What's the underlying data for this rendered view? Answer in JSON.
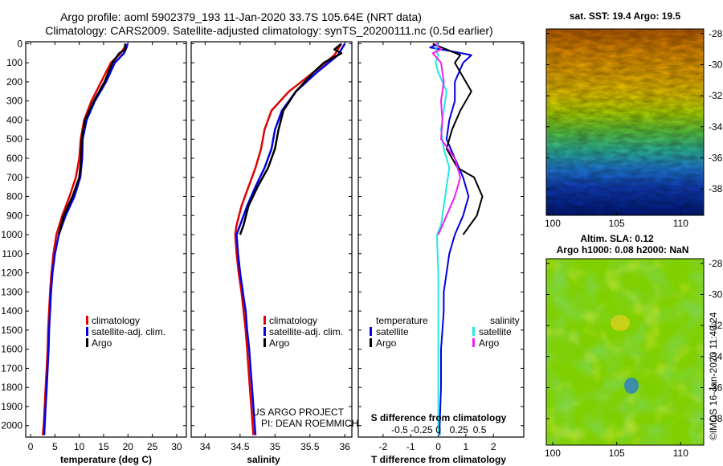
{
  "title_line1": "Argo profile: aoml 5902379_193 11-Jan-2020 33.7S 105.64E (NRT data)",
  "title_line2": "Climatology: CARS2009. Satellite-adjusted climatology: synTS_20200111.nc (0.5d earlier)",
  "watermark": "©IMOS 16-Jan-2020 11:40:24",
  "credit_line1": "US ARGO PROJECT",
  "credit_line2": "PI: DEAN ROEMMICH",
  "colors": {
    "climatology": "#e00000",
    "satellite": "#0000e0",
    "argo": "#000000",
    "sat_salinity": "#22e8e8",
    "argo_salinity": "#f020f0"
  },
  "chart_data": [
    {
      "type": "line",
      "name": "temperature-profile",
      "xlabel": "temperature (deg C)",
      "ylabel": "depth",
      "xlim": [
        -1,
        32
      ],
      "ylim": [
        2060,
        -10
      ],
      "xticks": [
        "0",
        "5",
        "10",
        "15",
        "20",
        "25",
        "30"
      ],
      "xtick_values": [
        0,
        5,
        10,
        15,
        20,
        25,
        30
      ],
      "yticks": [
        "0",
        "100",
        "200",
        "300",
        "400",
        "500",
        "600",
        "700",
        "800",
        "900",
        "1000",
        "1100",
        "1200",
        "1300",
        "1400",
        "1500",
        "1600",
        "1700",
        "1800",
        "1900",
        "2000"
      ],
      "ytick_values": [
        0,
        100,
        200,
        300,
        400,
        500,
        600,
        700,
        800,
        900,
        1000,
        1100,
        1200,
        1300,
        1400,
        1500,
        1600,
        1700,
        1800,
        1900,
        2000
      ],
      "legend": [
        "climatology",
        "satellite-adj. clim.",
        "Argo"
      ],
      "series": [
        {
          "name": "climatology",
          "color": "#e00000",
          "points": [
            [
              19.5,
              0
            ],
            [
              19.3,
              20
            ],
            [
              18.5,
              50
            ],
            [
              16.5,
              100
            ],
            [
              14.5,
              200
            ],
            [
              12.5,
              300
            ],
            [
              11,
              400
            ],
            [
              10.3,
              500
            ],
            [
              10,
              600
            ],
            [
              9.3,
              700
            ],
            [
              8,
              800
            ],
            [
              6.5,
              900
            ],
            [
              5.3,
              1000
            ],
            [
              4.7,
              1100
            ],
            [
              4.3,
              1200
            ],
            [
              4,
              1300
            ],
            [
              3.8,
              1400
            ],
            [
              3.6,
              1500
            ],
            [
              3.5,
              1600
            ],
            [
              3.3,
              1700
            ],
            [
              3.1,
              1800
            ],
            [
              2.9,
              1900
            ],
            [
              2.7,
              2000
            ],
            [
              2.5,
              2050
            ]
          ]
        },
        {
          "name": "satellite-adj. clim.",
          "color": "#0000e0",
          "points": [
            [
              19.9,
              0
            ],
            [
              19.7,
              20
            ],
            [
              19.2,
              50
            ],
            [
              17.3,
              100
            ],
            [
              15.5,
              200
            ],
            [
              13.2,
              300
            ],
            [
              11.5,
              400
            ],
            [
              10.7,
              500
            ],
            [
              10.6,
              600
            ],
            [
              10.2,
              700
            ],
            [
              9,
              800
            ],
            [
              7.2,
              900
            ],
            [
              5.8,
              1000
            ],
            [
              5,
              1100
            ],
            [
              4.5,
              1200
            ],
            [
              4.2,
              1300
            ],
            [
              4,
              1400
            ],
            [
              3.8,
              1500
            ],
            [
              3.7,
              1600
            ],
            [
              3.5,
              1700
            ],
            [
              3.3,
              1800
            ],
            [
              3.1,
              1900
            ],
            [
              2.9,
              2000
            ],
            [
              2.8,
              2050
            ]
          ]
        },
        {
          "name": "Argo",
          "color": "#000000",
          "points": [
            [
              19.4,
              0
            ],
            [
              19.5,
              30
            ],
            [
              18.2,
              50
            ],
            [
              16.8,
              100
            ],
            [
              15.2,
              200
            ],
            [
              13,
              300
            ],
            [
              11.2,
              400
            ],
            [
              10.5,
              500
            ],
            [
              10.4,
              600
            ],
            [
              10,
              700
            ],
            [
              8.6,
              800
            ],
            [
              6.8,
              900
            ],
            [
              5.8,
              1000
            ]
          ]
        }
      ]
    },
    {
      "type": "line",
      "name": "salinity-profile",
      "xlabel": "salinity",
      "xlim": [
        33.8,
        36.1
      ],
      "ylim": [
        2060,
        -10
      ],
      "xticks": [
        "34",
        "34.5",
        "35",
        "35.5",
        "36"
      ],
      "xtick_values": [
        34,
        34.5,
        35,
        35.5,
        36
      ],
      "legend": [
        "climatology",
        "satellite-adj. clim.",
        "Argo"
      ],
      "series": [
        {
          "name": "climatology",
          "color": "#e00000",
          "points": [
            [
              35.95,
              0
            ],
            [
              35.9,
              30
            ],
            [
              35.85,
              60
            ],
            [
              35.55,
              150
            ],
            [
              35.2,
              250
            ],
            [
              34.95,
              350
            ],
            [
              34.85,
              450
            ],
            [
              34.8,
              550
            ],
            [
              34.72,
              650
            ],
            [
              34.62,
              750
            ],
            [
              34.52,
              850
            ],
            [
              34.45,
              950
            ],
            [
              34.43,
              1000
            ],
            [
              34.45,
              1100
            ],
            [
              34.48,
              1200
            ],
            [
              34.52,
              1300
            ],
            [
              34.55,
              1400
            ],
            [
              34.58,
              1500
            ],
            [
              34.6,
              1600
            ],
            [
              34.62,
              1700
            ],
            [
              34.64,
              1800
            ],
            [
              34.66,
              1900
            ],
            [
              34.68,
              2000
            ],
            [
              34.69,
              2050
            ]
          ]
        },
        {
          "name": "satellite-adj. clim.",
          "color": "#0000e0",
          "points": [
            [
              36.0,
              0
            ],
            [
              35.95,
              30
            ],
            [
              35.9,
              60
            ],
            [
              35.6,
              150
            ],
            [
              35.3,
              250
            ],
            [
              35.1,
              350
            ],
            [
              35.0,
              450
            ],
            [
              34.95,
              550
            ],
            [
              34.85,
              650
            ],
            [
              34.72,
              750
            ],
            [
              34.6,
              850
            ],
            [
              34.5,
              950
            ],
            [
              34.45,
              1000
            ],
            [
              34.47,
              1100
            ],
            [
              34.5,
              1200
            ],
            [
              34.54,
              1300
            ],
            [
              34.58,
              1400
            ],
            [
              34.6,
              1500
            ],
            [
              34.63,
              1600
            ],
            [
              34.65,
              1700
            ],
            [
              34.67,
              1800
            ],
            [
              34.69,
              1900
            ],
            [
              34.71,
              2000
            ],
            [
              34.72,
              2050
            ]
          ]
        },
        {
          "name": "Argo",
          "color": "#000000",
          "points": [
            [
              35.95,
              0
            ],
            [
              35.85,
              30
            ],
            [
              35.95,
              50
            ],
            [
              35.7,
              100
            ],
            [
              35.55,
              150
            ],
            [
              35.3,
              250
            ],
            [
              35.12,
              350
            ],
            [
              35.05,
              450
            ],
            [
              35.0,
              550
            ],
            [
              34.9,
              650
            ],
            [
              34.75,
              750
            ],
            [
              34.62,
              850
            ],
            [
              34.55,
              950
            ],
            [
              34.5,
              1000
            ]
          ]
        }
      ]
    },
    {
      "type": "line",
      "name": "difference-profile",
      "xlabel": "T difference from climatology",
      "xlabel2": "S difference from climatology",
      "xlim": [
        -2.9,
        3.1
      ],
      "ylim": [
        2060,
        -10
      ],
      "xticks": [
        "-2",
        "-1",
        "0",
        "1",
        "2"
      ],
      "xtick_values": [
        -2,
        -1,
        0,
        1,
        2
      ],
      "sticks": [
        "-0.5",
        "-0.25",
        "0",
        "0.25",
        "0.5"
      ],
      "stick_values": [
        -1.4,
        -0.6,
        0,
        0.75,
        1.5
      ],
      "legend_left_title": "temperature",
      "legend_right_title": "salinity",
      "legend_left": [
        "satellite",
        "Argo"
      ],
      "legend_right": [
        "satellite",
        "Argo"
      ],
      "series": [
        {
          "name": "T satellite",
          "color": "#0000e0",
          "points": [
            [
              0,
              0
            ],
            [
              -0.3,
              20
            ],
            [
              0.5,
              40
            ],
            [
              1.2,
              60
            ],
            [
              0.9,
              100
            ],
            [
              0.6,
              200
            ],
            [
              0.6,
              300
            ],
            [
              0.4,
              400
            ],
            [
              0.3,
              500
            ],
            [
              0.6,
              600
            ],
            [
              0.9,
              700
            ],
            [
              1.1,
              800
            ],
            [
              0.9,
              900
            ],
            [
              0.6,
              1000
            ],
            [
              0.4,
              1100
            ],
            [
              0.3,
              1200
            ],
            [
              0.2,
              1300
            ],
            [
              0.2,
              1400
            ],
            [
              0.1,
              1600
            ],
            [
              0.1,
              1800
            ],
            [
              0.05,
              2000
            ],
            [
              0.05,
              2050
            ]
          ]
        },
        {
          "name": "T Argo",
          "color": "#000000",
          "points": [
            [
              -0.2,
              0
            ],
            [
              0.3,
              30
            ],
            [
              0.8,
              60
            ],
            [
              0.6,
              100
            ],
            [
              0.8,
              150
            ],
            [
              1.2,
              250
            ],
            [
              0.8,
              350
            ],
            [
              0.5,
              450
            ],
            [
              0.3,
              550
            ],
            [
              0.7,
              650
            ],
            [
              1.3,
              700
            ],
            [
              1.6,
              800
            ],
            [
              1.4,
              900
            ],
            [
              0.9,
              1000
            ]
          ]
        },
        {
          "name": "S satellite",
          "color": "#22e8e8",
          "points": [
            [
              0,
              0
            ],
            [
              -0.1,
              30
            ],
            [
              0,
              60
            ],
            [
              -0.1,
              100
            ],
            [
              0,
              150
            ],
            [
              0.3,
              250
            ],
            [
              0.2,
              350
            ],
            [
              0.1,
              450
            ],
            [
              0.2,
              550
            ],
            [
              0.4,
              650
            ],
            [
              0.3,
              750
            ],
            [
              0.2,
              850
            ],
            [
              0.1,
              950
            ],
            [
              -0.05,
              1000
            ],
            [
              0,
              1200
            ],
            [
              0,
              1400
            ],
            [
              0,
              1600
            ],
            [
              0,
              1800
            ],
            [
              0,
              2000
            ],
            [
              0,
              2050
            ]
          ]
        },
        {
          "name": "S Argo",
          "color": "#f020f0",
          "points": [
            [
              -0.1,
              0
            ],
            [
              0.1,
              30
            ],
            [
              -0.2,
              50
            ],
            [
              0.1,
              100
            ],
            [
              0.2,
              200
            ],
            [
              0.1,
              300
            ],
            [
              0.15,
              400
            ],
            [
              0.1,
              500
            ],
            [
              0.6,
              600
            ],
            [
              0.8,
              700
            ],
            [
              0.6,
              800
            ],
            [
              0.3,
              900
            ],
            [
              0,
              1000
            ]
          ]
        }
      ]
    },
    {
      "type": "heatmap",
      "name": "sst-map",
      "title": "sat. SST: 19.4 Argo: 19.5",
      "xticks": [
        "100",
        "105",
        "110"
      ],
      "xtick_values": [
        100,
        105,
        110
      ],
      "yticks": [
        "-28",
        "-30",
        "-32",
        "-34",
        "-36",
        "-38"
      ],
      "ytick_values": [
        -28,
        -30,
        -32,
        -34,
        -36,
        -38
      ],
      "xlim": [
        99.5,
        111.8
      ],
      "ylim": [
        -27.7,
        -39.7
      ]
    },
    {
      "type": "heatmap",
      "name": "sla-map",
      "title_line1": "Altim. SLA: 0.12",
      "title_line2": "Argo h1000: 0.08 h2000: NaN",
      "xticks": [
        "100",
        "105",
        "110"
      ],
      "xtick_values": [
        100,
        105,
        110
      ],
      "yticks": [
        "-28",
        "-30",
        "-32",
        "-34",
        "-36",
        "-38"
      ],
      "ytick_values": [
        -28,
        -30,
        -32,
        -34,
        -36,
        -38
      ],
      "xlim": [
        99.5,
        111.8
      ],
      "ylim": [
        -27.7,
        -39.7
      ]
    }
  ]
}
